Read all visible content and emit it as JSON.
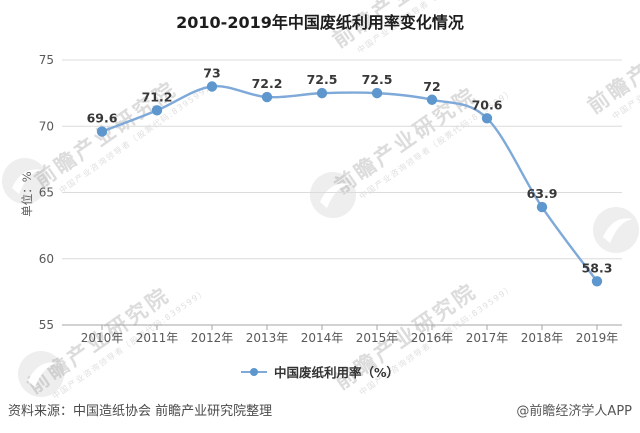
{
  "title": "2010-2019年中国废纸利用率变化情况",
  "chart_data": {
    "type": "line",
    "title": "2010-2019年中国废纸利用率变化情况",
    "categories": [
      "2010年",
      "2011年",
      "2012年",
      "2013年",
      "2014年",
      "2015年",
      "2016年",
      "2017年",
      "2018年",
      "2019年"
    ],
    "series": [
      {
        "name": "中国废纸利用率（%）",
        "values": [
          69.6,
          71.2,
          73,
          72.2,
          72.5,
          72.5,
          72,
          70.6,
          63.9,
          58.3
        ]
      }
    ],
    "xlabel": "",
    "ylabel": "单位：%",
    "ylim": [
      55,
      75
    ],
    "yticks": [
      55,
      60,
      65,
      70,
      75
    ],
    "grid": true,
    "legend_position": "bottom",
    "line_color": "#7EA9D8",
    "marker_color": "#5E97CE",
    "value_label_color": "#383838"
  },
  "axis": {
    "unit_label": "单位：%"
  },
  "legend": {
    "label": "中国废纸利用率（%）"
  },
  "footer": {
    "source": "资料来源：中国造纸协会 前瞻产业研究院整理",
    "credit": "@前瞻经济学人APP"
  },
  "watermark": {
    "brand": "前瞻产业研究院",
    "tagline": "中国产业咨询领导者（股票代码:839599）"
  },
  "colors": {
    "background": "#ffffff",
    "gridline": "#dcdcdc",
    "axis_text": "#595959",
    "title_text": "#1d1d1d"
  }
}
